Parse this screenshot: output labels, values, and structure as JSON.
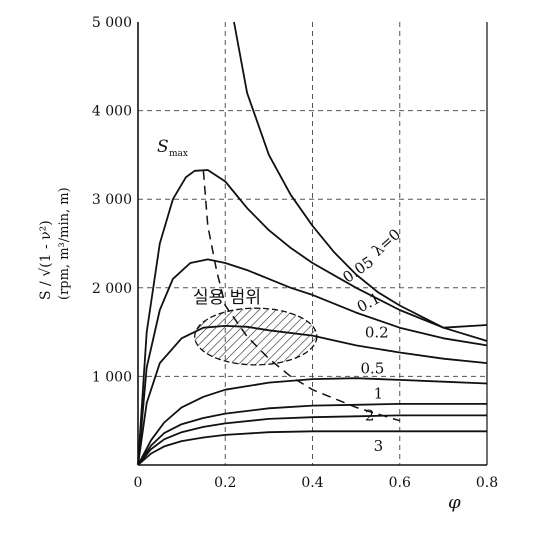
{
  "chart_data": {
    "type": "line",
    "xlabel": "φ",
    "ylabel": "S / √(1 - ν²)",
    "ylabel_units": "(rpm, m³/min, m)",
    "xlim": [
      0,
      0.8
    ],
    "ylim": [
      0,
      5000
    ],
    "x_ticks": [
      "0",
      "0.2",
      "0.4",
      "0.6",
      "0.8"
    ],
    "y_ticks": [
      "0",
      "1 000",
      "2 000",
      "3 000",
      "4 000",
      "5 000"
    ],
    "grid": "dashed",
    "series": [
      {
        "name": "λ=0",
        "points": [
          [
            0.22,
            5000
          ],
          [
            0.25,
            4200
          ],
          [
            0.3,
            3500
          ],
          [
            0.35,
            3050
          ],
          [
            0.4,
            2700
          ],
          [
            0.45,
            2400
          ],
          [
            0.5,
            2150
          ],
          [
            0.55,
            1950
          ],
          [
            0.6,
            1800
          ],
          [
            0.7,
            1550
          ],
          [
            0.8,
            1580
          ]
        ]
      },
      {
        "name": "0.05",
        "points": [
          [
            0,
            0
          ],
          [
            0.02,
            1500
          ],
          [
            0.05,
            2500
          ],
          [
            0.08,
            3000
          ],
          [
            0.11,
            3250
          ],
          [
            0.13,
            3320
          ],
          [
            0.16,
            3330
          ],
          [
            0.2,
            3200
          ],
          [
            0.25,
            2900
          ],
          [
            0.3,
            2650
          ],
          [
            0.35,
            2450
          ],
          [
            0.4,
            2280
          ],
          [
            0.5,
            2000
          ],
          [
            0.6,
            1750
          ],
          [
            0.7,
            1550
          ],
          [
            0.8,
            1400
          ]
        ]
      },
      {
        "name": "0.1",
        "points": [
          [
            0,
            0
          ],
          [
            0.02,
            1100
          ],
          [
            0.05,
            1750
          ],
          [
            0.08,
            2100
          ],
          [
            0.12,
            2280
          ],
          [
            0.16,
            2320
          ],
          [
            0.2,
            2280
          ],
          [
            0.25,
            2200
          ],
          [
            0.3,
            2100
          ],
          [
            0.35,
            2000
          ],
          [
            0.4,
            1920
          ],
          [
            0.5,
            1720
          ],
          [
            0.6,
            1550
          ],
          [
            0.7,
            1430
          ],
          [
            0.8,
            1350
          ]
        ]
      },
      {
        "name": "0.2",
        "points": [
          [
            0,
            0
          ],
          [
            0.02,
            700
          ],
          [
            0.05,
            1150
          ],
          [
            0.1,
            1430
          ],
          [
            0.15,
            1550
          ],
          [
            0.2,
            1570
          ],
          [
            0.25,
            1560
          ],
          [
            0.3,
            1520
          ],
          [
            0.4,
            1460
          ],
          [
            0.5,
            1350
          ],
          [
            0.6,
            1270
          ],
          [
            0.7,
            1200
          ],
          [
            0.8,
            1150
          ]
        ]
      },
      {
        "name": "0.5",
        "points": [
          [
            0,
            0
          ],
          [
            0.03,
            280
          ],
          [
            0.06,
            480
          ],
          [
            0.1,
            650
          ],
          [
            0.15,
            770
          ],
          [
            0.2,
            850
          ],
          [
            0.3,
            930
          ],
          [
            0.4,
            970
          ],
          [
            0.5,
            980
          ],
          [
            0.6,
            960
          ],
          [
            0.7,
            940
          ],
          [
            0.8,
            920
          ]
        ]
      },
      {
        "name": "1",
        "points": [
          [
            0,
            0
          ],
          [
            0.03,
            220
          ],
          [
            0.06,
            360
          ],
          [
            0.1,
            460
          ],
          [
            0.15,
            530
          ],
          [
            0.2,
            580
          ],
          [
            0.3,
            640
          ],
          [
            0.4,
            670
          ],
          [
            0.5,
            680
          ],
          [
            0.6,
            690
          ],
          [
            0.8,
            690
          ]
        ]
      },
      {
        "name": "2",
        "points": [
          [
            0,
            0
          ],
          [
            0.03,
            180
          ],
          [
            0.06,
            290
          ],
          [
            0.1,
            370
          ],
          [
            0.15,
            430
          ],
          [
            0.2,
            470
          ],
          [
            0.3,
            520
          ],
          [
            0.4,
            540
          ],
          [
            0.5,
            550
          ],
          [
            0.6,
            560
          ],
          [
            0.8,
            560
          ]
        ]
      },
      {
        "name": "3",
        "points": [
          [
            0,
            0
          ],
          [
            0.03,
            130
          ],
          [
            0.06,
            210
          ],
          [
            0.1,
            270
          ],
          [
            0.15,
            310
          ],
          [
            0.2,
            340
          ],
          [
            0.3,
            370
          ],
          [
            0.4,
            380
          ],
          [
            0.6,
            380
          ],
          [
            0.8,
            380
          ]
        ]
      }
    ],
    "smax_curve": {
      "name": "S_max",
      "points": [
        [
          0.15,
          3320
        ],
        [
          0.16,
          2700
        ],
        [
          0.18,
          2200
        ],
        [
          0.2,
          1800
        ],
        [
          0.25,
          1450
        ],
        [
          0.3,
          1200
        ],
        [
          0.35,
          1000
        ],
        [
          0.4,
          850
        ],
        [
          0.5,
          650
        ],
        [
          0.6,
          500
        ]
      ]
    },
    "practical_range_label": "실용 범위",
    "practical_range_ellipse": {
      "cx": 0.27,
      "cy": 1450,
      "rx": 0.14,
      "ry": 320
    },
    "curve_labels": [
      {
        "text": "λ=0",
        "at": [
          0.55,
          2350
        ],
        "rotate": -42
      },
      {
        "text": "0.05",
        "at": [
          0.48,
          2050
        ],
        "rotate": -35
      },
      {
        "text": "0.1",
        "at": [
          0.51,
          1720
        ],
        "rotate": -28
      },
      {
        "text": "0.2",
        "at": [
          0.52,
          1440
        ],
        "rotate": 0
      },
      {
        "text": "0.5",
        "at": [
          0.51,
          1030
        ],
        "rotate": 0
      },
      {
        "text": "1",
        "at": [
          0.54,
          750
        ],
        "rotate": 0
      },
      {
        "text": "2",
        "at": [
          0.52,
          500
        ],
        "rotate": 0
      },
      {
        "text": "3",
        "at": [
          0.54,
          160
        ],
        "rotate": 0
      }
    ]
  }
}
